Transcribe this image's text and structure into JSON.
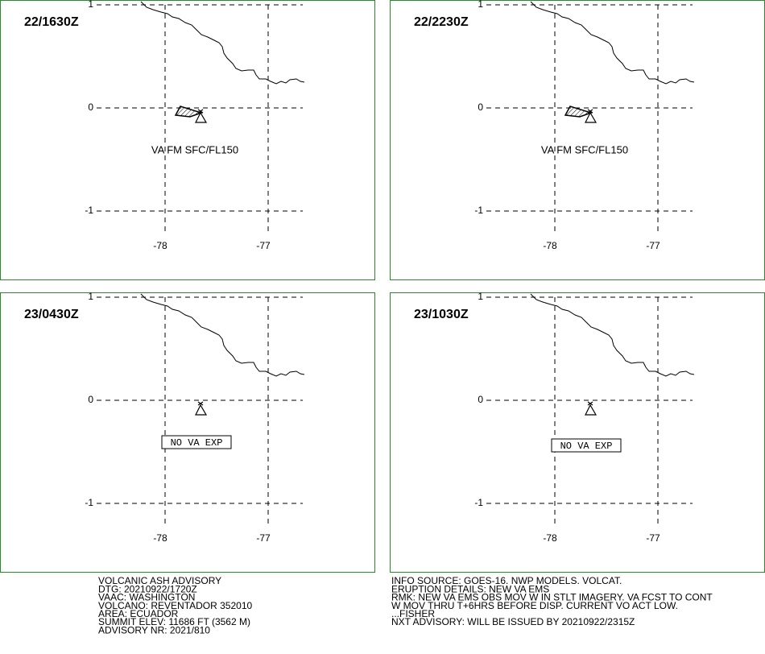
{
  "panels": [
    {
      "time": "22/1630Z",
      "label": "VA FM SFC/FL150"
    },
    {
      "time": "22/2230Z",
      "label": "VA FM SFC/FL150"
    },
    {
      "time": "23/0430Z",
      "label": "NO VA EXP"
    },
    {
      "time": "23/1030Z",
      "label": "NO VA EXP"
    }
  ],
  "axes": {
    "lat_labels": [
      "1",
      "0",
      "-1"
    ],
    "lon_labels": [
      "-78",
      "-77"
    ]
  },
  "footer": {
    "left": [
      "VOLCANIC ASH ADVISORY",
      "DTG: 20210922/1720Z",
      "VAAC: WASHINGTON",
      "VOLCANO: REVENTADOR 352010",
      "AREA: ECUADOR",
      "SUMMIT ELEV: 11686 FT (3562 M)",
      "ADVISORY NR: 2021/810"
    ],
    "right": [
      "INFO SOURCE: GOES-16. NWP MODELS. VOLCAT.",
      "ERUPTION DETAILS: NEW VA EMS",
      "RMK: NEW VA EMS OBS MOV W IN STLT IMAGERY. VA FCST TO CONT",
      "W MOV THRU T+6HRS BEFORE DISP. CURRENT VO ACT LOW.",
      "...FISHER",
      "NXT ADVISORY: WILL BE ISSUED BY 20210922/2315Z"
    ]
  }
}
